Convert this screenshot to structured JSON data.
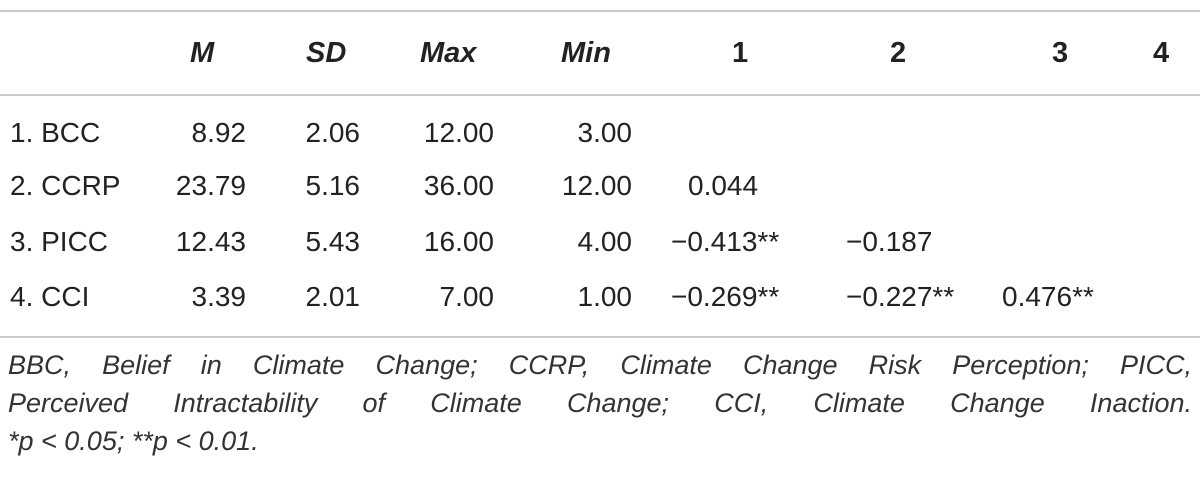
{
  "table": {
    "headers": [
      "M",
      "SD",
      "Max",
      "Min",
      "1",
      "2",
      "3",
      "4"
    ],
    "rows": [
      {
        "label": "1. BCC",
        "m": "8.92",
        "sd": "2.06",
        "max": "12.00",
        "min": "3.00",
        "c1": "",
        "c2": "",
        "c3": ""
      },
      {
        "label": "2. CCRP",
        "m": "23.79",
        "sd": "5.16",
        "max": "36.00",
        "min": "12.00",
        "c1": "0.044",
        "c2": "",
        "c3": ""
      },
      {
        "label": "3. PICC",
        "m": "12.43",
        "sd": "5.43",
        "max": "16.00",
        "min": "4.00",
        "c1": "−0.413**",
        "c2": "−0.187",
        "c3": ""
      },
      {
        "label": "4. CCI",
        "m": "3.39",
        "sd": "2.01",
        "max": "7.00",
        "min": "1.00",
        "c1": "−0.269**",
        "c2": "−0.227**",
        "c3": "0.476**"
      }
    ]
  },
  "note": {
    "line1": "BBC, Belief in Climate Change; CCRP, Climate Change Risk Perception; PICC,",
    "line2": "Perceived Intractability of Climate Change; CCI, Climate Change Inaction.",
    "line3": "*p < 0.05; **p < 0.01."
  }
}
